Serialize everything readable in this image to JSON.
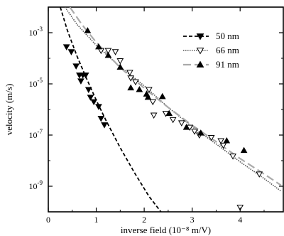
{
  "chart_data": {
    "type": "scatter",
    "title": "",
    "xlabel": "inverse field (10⁻⁸ m/V)",
    "ylabel": "velocity (m/s)",
    "xlim": [
      0,
      4.9
    ],
    "ylim": [
      1e-10,
      0.01
    ],
    "yscale": "log",
    "grid": false,
    "legend_position": "top-right",
    "x_ticks": [
      0,
      1,
      2,
      3,
      4
    ],
    "x_tick_labels": [
      "0",
      "1",
      "2",
      "3",
      "4"
    ],
    "y_ticks": [
      0.001,
      1e-05,
      1e-07,
      1e-09
    ],
    "y_tick_labels": [
      {
        "base": "10",
        "exp": "-3"
      },
      {
        "base": "10",
        "exp": "-5"
      },
      {
        "base": "10",
        "exp": "-7"
      },
      {
        "base": "10",
        "exp": "-9"
      }
    ],
    "series": [
      {
        "name": "50 nm",
        "marker": "triangle-down-filled",
        "line_style": "dashed",
        "line_color": "#000000",
        "points": [
          {
            "x": 0.38,
            "y": 0.00028
          },
          {
            "x": 0.48,
            "y": 0.00018
          },
          {
            "x": 0.58,
            "y": 5e-05
          },
          {
            "x": 0.65,
            "y": 2.2e-05
          },
          {
            "x": 0.68,
            "y": 1.3e-05
          },
          {
            "x": 0.72,
            "y": 2.2e-05
          },
          {
            "x": 0.78,
            "y": 2.2e-05
          },
          {
            "x": 0.84,
            "y": 6e-06
          },
          {
            "x": 0.88,
            "y": 3e-06
          },
          {
            "x": 0.95,
            "y": 2e-06
          },
          {
            "x": 1.05,
            "y": 1.3e-06
          },
          {
            "x": 1.1,
            "y": 4.5e-07
          },
          {
            "x": 1.17,
            "y": 2.5e-07
          }
        ],
        "fit": [
          {
            "x": 0.25,
            "y": 0.01
          },
          {
            "x": 0.4,
            "y": 0.0012
          },
          {
            "x": 0.6,
            "y": 0.00012
          },
          {
            "x": 0.8,
            "y": 1.6e-05
          },
          {
            "x": 1.0,
            "y": 2.3e-06
          },
          {
            "x": 1.2,
            "y": 3.8e-07
          },
          {
            "x": 1.5,
            "y": 3.2e-08
          },
          {
            "x": 1.8,
            "y": 3.3e-09
          },
          {
            "x": 2.1,
            "y": 4e-10
          },
          {
            "x": 2.35,
            "y": 1e-10
          }
        ]
      },
      {
        "name": "66 nm",
        "marker": "triangle-down-open",
        "line_style": "dotted",
        "line_color": "#555555",
        "points": [
          {
            "x": 1.1,
            "y": 0.0002
          },
          {
            "x": 1.25,
            "y": 0.0002
          },
          {
            "x": 1.4,
            "y": 0.00018
          },
          {
            "x": 1.5,
            "y": 8e-05
          },
          {
            "x": 1.7,
            "y": 2.8e-05
          },
          {
            "x": 1.72,
            "y": 1.7e-05
          },
          {
            "x": 1.82,
            "y": 1.2e-05
          },
          {
            "x": 2.1,
            "y": 6e-06
          },
          {
            "x": 2.18,
            "y": 2e-06
          },
          {
            "x": 2.2,
            "y": 6e-07
          },
          {
            "x": 2.45,
            "y": 7e-07
          },
          {
            "x": 2.6,
            "y": 4e-07
          },
          {
            "x": 2.78,
            "y": 3e-07
          },
          {
            "x": 2.95,
            "y": 2e-07
          },
          {
            "x": 3.05,
            "y": 1.4e-07
          },
          {
            "x": 3.15,
            "y": 1e-07
          },
          {
            "x": 3.4,
            "y": 8e-08
          },
          {
            "x": 3.6,
            "y": 6e-08
          },
          {
            "x": 3.65,
            "y": 4e-08
          },
          {
            "x": 3.85,
            "y": 1.5e-08
          },
          {
            "x": 4.0,
            "y": 1.5e-10
          },
          {
            "x": 4.4,
            "y": 3e-09
          }
        ],
        "fit": [
          {
            "x": 0.35,
            "y": 0.01
          },
          {
            "x": 0.6,
            "y": 0.0021
          },
          {
            "x": 1.0,
            "y": 0.00032
          },
          {
            "x": 1.5,
            "y": 4.6e-05
          },
          {
            "x": 2.0,
            "y": 8.4e-06
          },
          {
            "x": 2.5,
            "y": 1.2e-06
          },
          {
            "x": 3.0,
            "y": 2.1e-07
          },
          {
            "x": 3.5,
            "y": 4.5e-08
          },
          {
            "x": 4.0,
            "y": 9e-09
          },
          {
            "x": 4.5,
            "y": 2e-09
          },
          {
            "x": 4.85,
            "y": 6.5e-10
          }
        ]
      },
      {
        "name": "91 nm",
        "marker": "triangle-up-filled",
        "line_style": "long-dashed",
        "line_color": "#aaaaaa",
        "points": [
          {
            "x": 0.82,
            "y": 0.0012
          },
          {
            "x": 1.05,
            "y": 0.00028
          },
          {
            "x": 1.25,
            "y": 0.00013
          },
          {
            "x": 1.5,
            "y": 4.5e-05
          },
          {
            "x": 1.72,
            "y": 7e-06
          },
          {
            "x": 1.9,
            "y": 6e-06
          },
          {
            "x": 2.05,
            "y": 4e-06
          },
          {
            "x": 2.08,
            "y": 3e-06
          },
          {
            "x": 2.38,
            "y": 3.2e-06
          },
          {
            "x": 2.52,
            "y": 7e-07
          },
          {
            "x": 2.88,
            "y": 2e-07
          },
          {
            "x": 3.18,
            "y": 1.2e-07
          },
          {
            "x": 3.72,
            "y": 6e-08
          },
          {
            "x": 4.08,
            "y": 2.5e-08
          }
        ],
        "fit": [
          {
            "x": 0.45,
            "y": 0.01
          },
          {
            "x": 0.7,
            "y": 0.0021
          },
          {
            "x": 1.0,
            "y": 0.00042
          },
          {
            "x": 1.5,
            "y": 4.3e-05
          },
          {
            "x": 2.0,
            "y": 6.8e-06
          },
          {
            "x": 2.5,
            "y": 1.2e-06
          },
          {
            "x": 3.0,
            "y": 2.4e-07
          },
          {
            "x": 3.5,
            "y": 5.5e-08
          },
          {
            "x": 4.0,
            "y": 1.2e-08
          },
          {
            "x": 4.5,
            "y": 3e-09
          },
          {
            "x": 4.85,
            "y": 1.1e-09
          }
        ]
      }
    ]
  }
}
